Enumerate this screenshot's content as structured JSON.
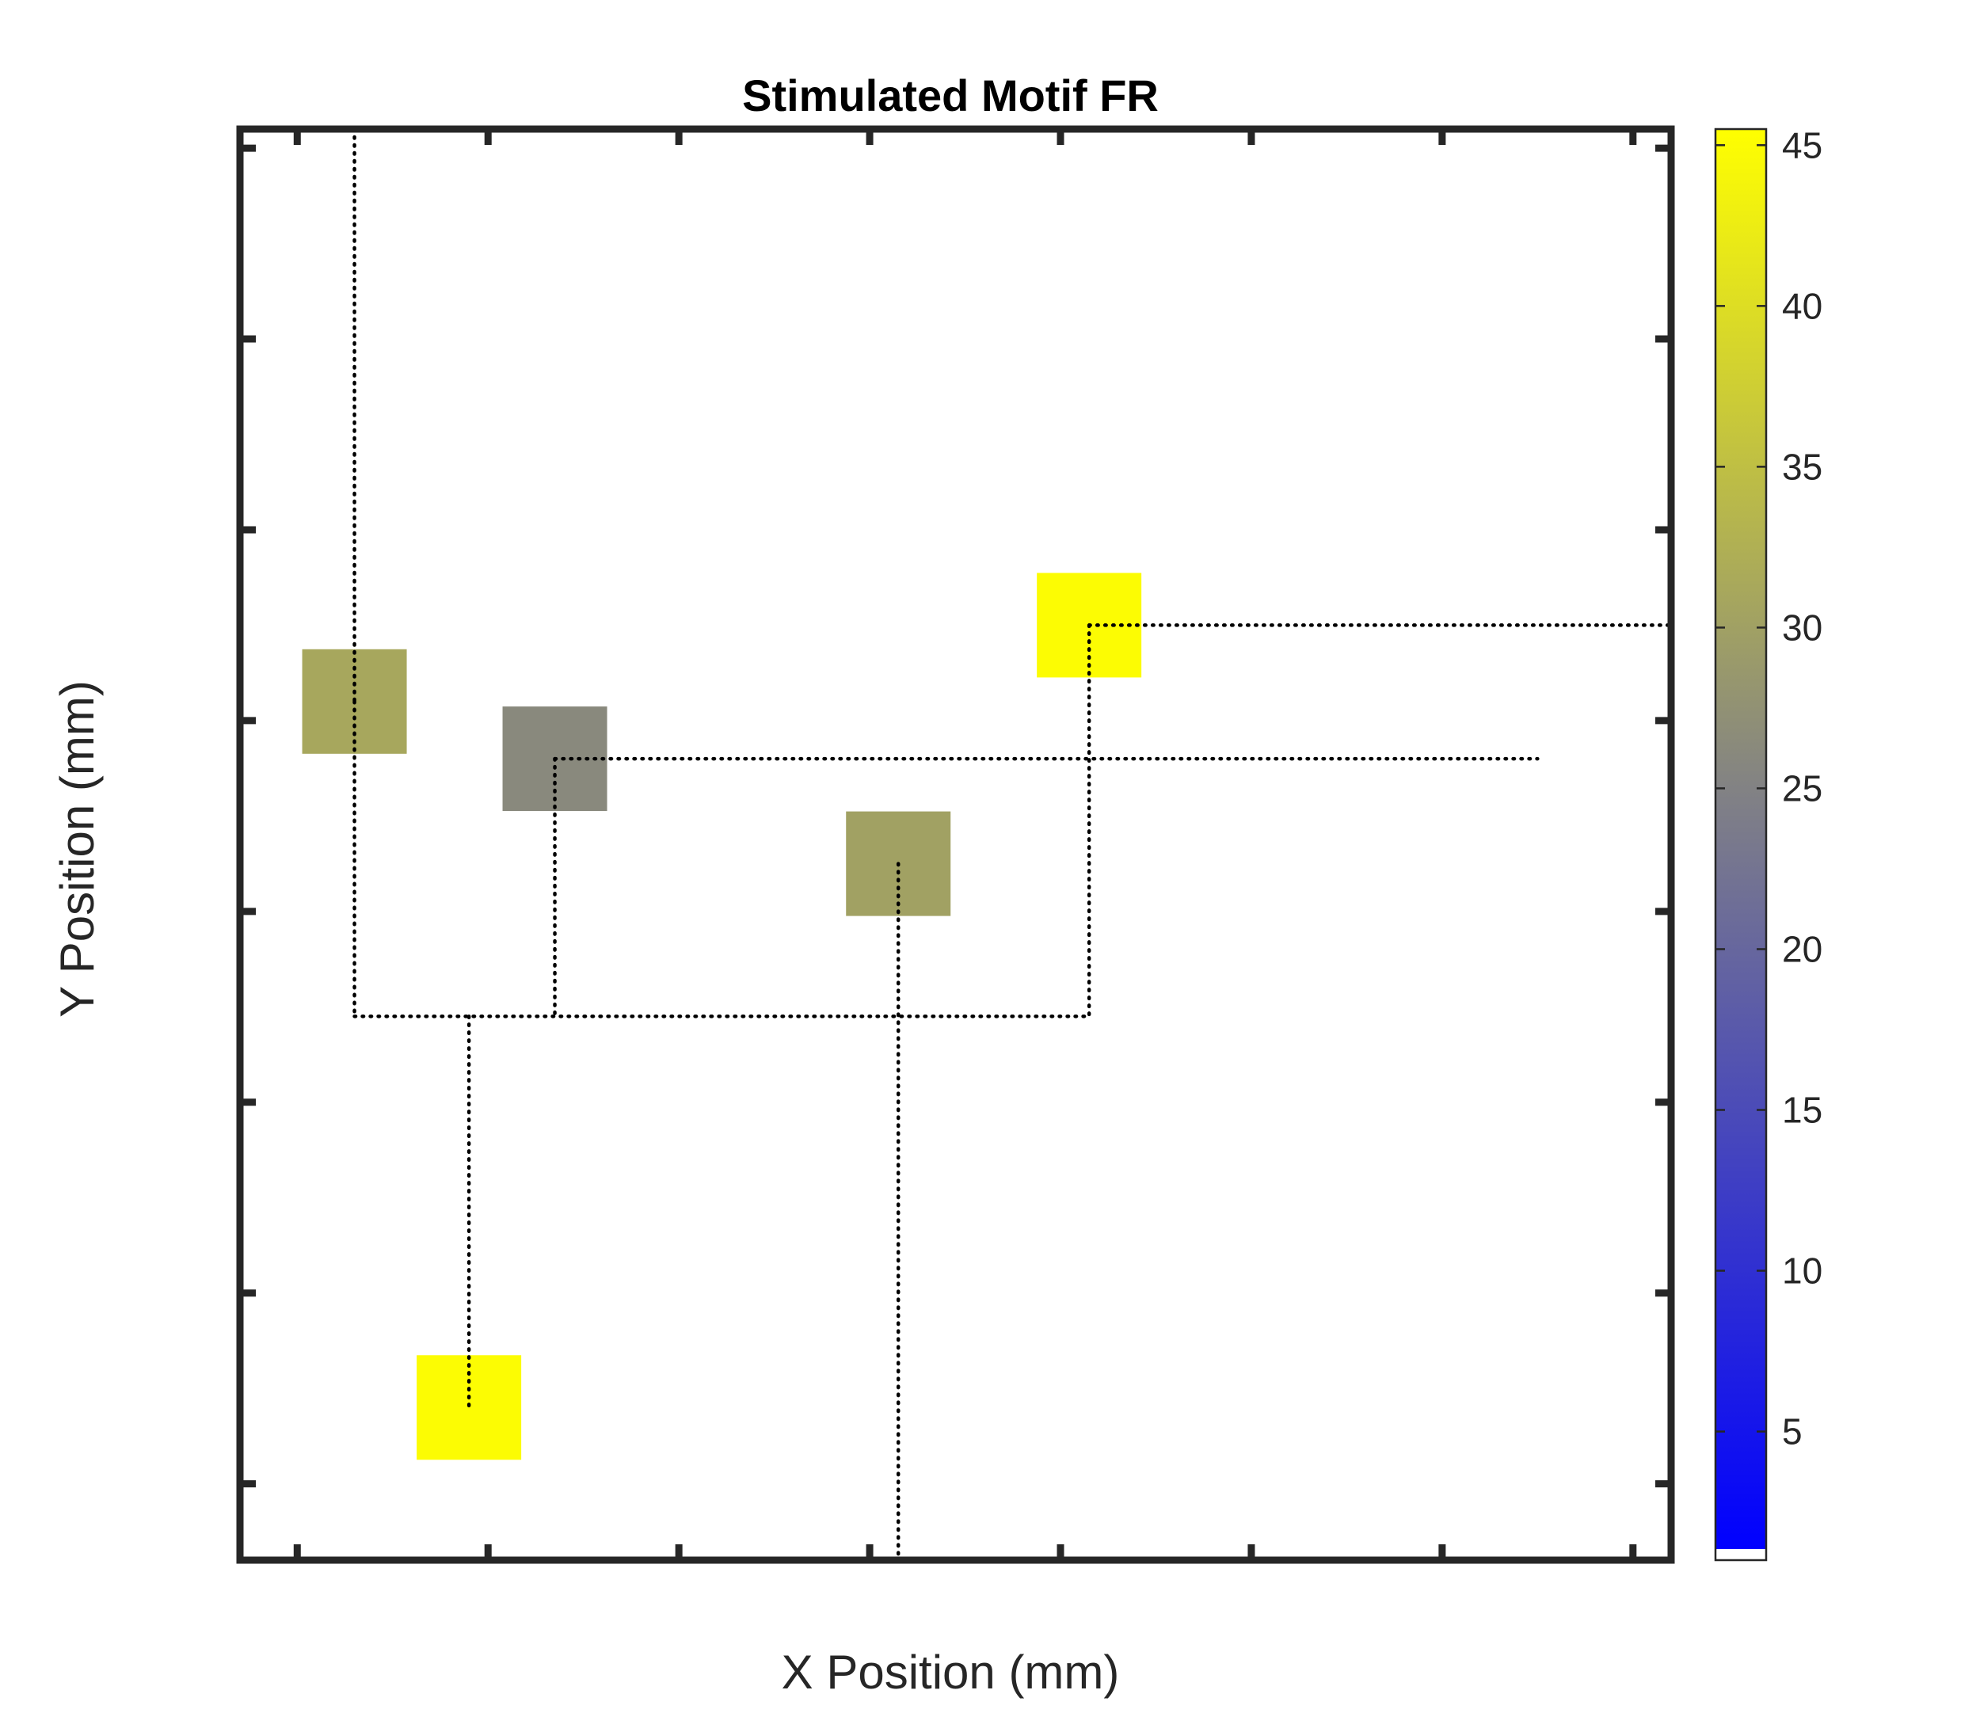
{
  "chart_data": {
    "type": "heatmap",
    "title": "Stimulated Motif FR",
    "xlabel": "X Position (mm)",
    "ylabel": "Y Position (mm)",
    "xlim": [
      0.7,
      8.2
    ],
    "ylim": [
      -0.4,
      7.1
    ],
    "x_ticks": [
      1,
      2,
      3,
      4,
      5,
      6,
      7,
      8
    ],
    "y_ticks": [
      0,
      1,
      2,
      3,
      4,
      5,
      6,
      7
    ],
    "tick_labels_shown": false,
    "cells": [
      {
        "x": 1.3,
        "y": 4.1,
        "value": 31
      },
      {
        "x": 2.35,
        "y": 3.8,
        "value": 26
      },
      {
        "x": 4.15,
        "y": 3.25,
        "value": 30
      },
      {
        "x": 5.15,
        "y": 4.5,
        "value": 45
      },
      {
        "x": 1.9,
        "y": 0.4,
        "value": 45
      }
    ],
    "connections": [
      [
        [
          1.3,
          7.1
        ],
        [
          1.3,
          4.1
        ]
      ],
      [
        [
          1.3,
          4.1
        ],
        [
          1.3,
          2.45
        ]
      ],
      [
        [
          1.3,
          2.45
        ],
        [
          5.15,
          2.45
        ]
      ],
      [
        [
          2.35,
          3.8
        ],
        [
          2.35,
          2.45
        ]
      ],
      [
        [
          1.9,
          2.45
        ],
        [
          1.9,
          0.4
        ]
      ],
      [
        [
          4.15,
          3.25
        ],
        [
          4.15,
          -0.4
        ]
      ],
      [
        [
          5.15,
          4.5
        ],
        [
          5.15,
          2.45
        ]
      ],
      [
        [
          2.35,
          3.8
        ],
        [
          7.5,
          3.8
        ]
      ],
      [
        [
          5.15,
          4.5
        ],
        [
          8.2,
          4.5
        ]
      ]
    ],
    "colorbar": {
      "ticks": [
        5,
        10,
        15,
        20,
        25,
        30,
        35,
        40,
        45
      ],
      "range": [
        1,
        45.5
      ],
      "colormap": [
        {
          "value": 1,
          "color": "#0000ff"
        },
        {
          "value": 25,
          "color": "#838383"
        },
        {
          "value": 45.5,
          "color": "#ffff00"
        }
      ]
    },
    "grid": false,
    "legend": "none"
  },
  "colors": {
    "axis": "#262626",
    "connection": "#000000"
  }
}
